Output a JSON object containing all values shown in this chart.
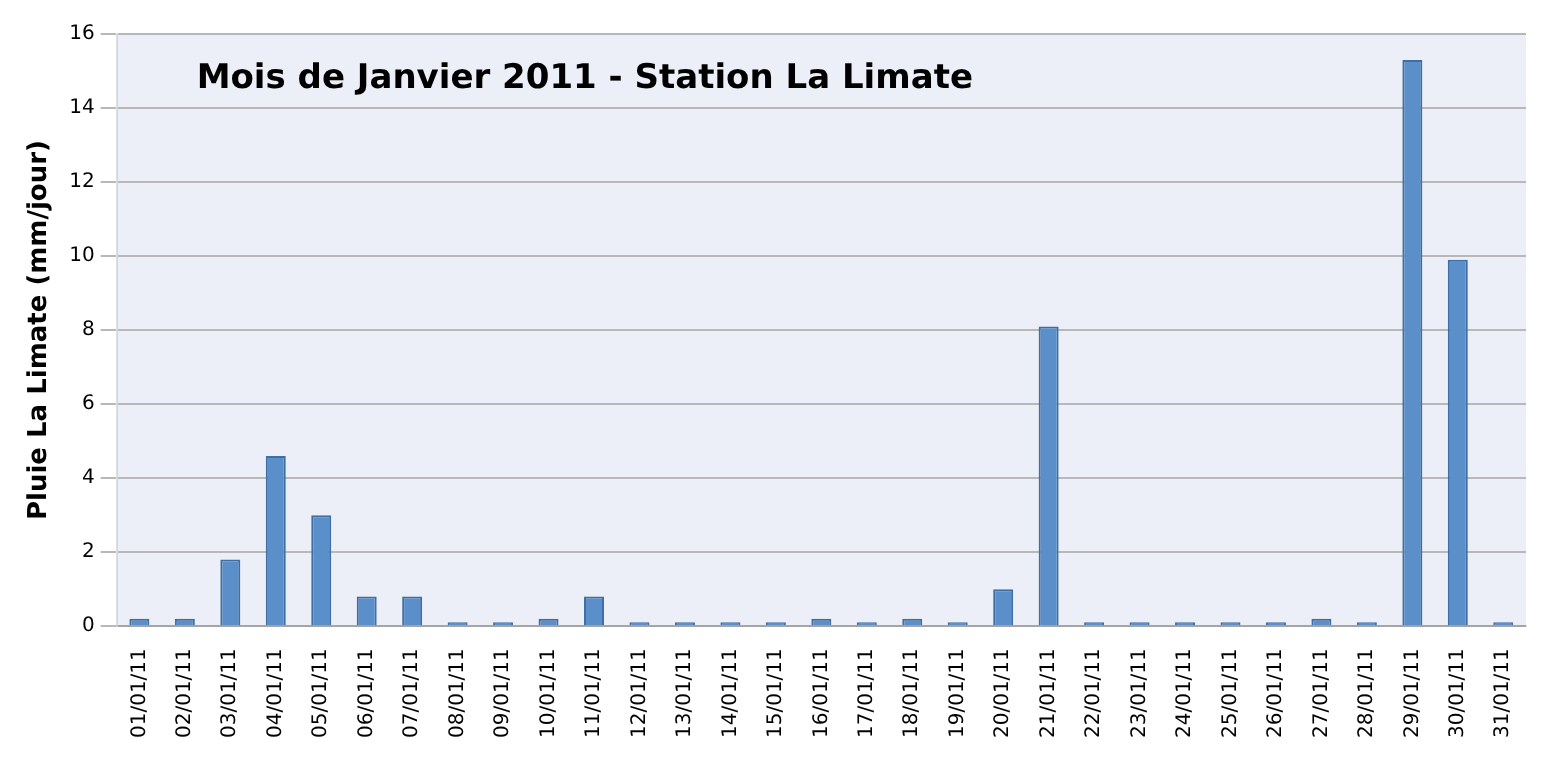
{
  "chart_data": {
    "type": "bar",
    "title": "Mois de Janvier 2011 - Station La Limate",
    "ylabel": "Pluie La Limate (mm/jour)",
    "categories": [
      "01/01/11",
      "02/01/11",
      "03/01/11",
      "04/01/11",
      "05/01/11",
      "06/01/11",
      "07/01/11",
      "08/01/11",
      "09/01/11",
      "10/01/11",
      "11/01/11",
      "12/01/11",
      "13/01/11",
      "14/01/11",
      "15/01/11",
      "16/01/11",
      "17/01/11",
      "18/01/11",
      "19/01/11",
      "20/01/11",
      "21/01/11",
      "22/01/11",
      "23/01/11",
      "24/01/11",
      "25/01/11",
      "26/01/11",
      "27/01/11",
      "28/01/11",
      "29/01/11",
      "30/01/11",
      "31/01/11"
    ],
    "values": [
      0.2,
      0.2,
      1.8,
      4.6,
      3.0,
      0.8,
      0.8,
      0,
      0,
      0.2,
      0.8,
      0,
      0,
      0,
      0,
      0.2,
      0,
      0.2,
      0,
      1.0,
      8.1,
      0,
      0,
      0,
      0,
      0,
      0.2,
      0,
      15.3,
      9.9,
      0
    ],
    "color": "#5b8fc9",
    "ylim": [
      0,
      16
    ],
    "yticks": [
      0,
      2,
      4,
      6,
      8,
      10,
      12,
      14,
      16
    ],
    "grid": "y",
    "legend": false
  }
}
